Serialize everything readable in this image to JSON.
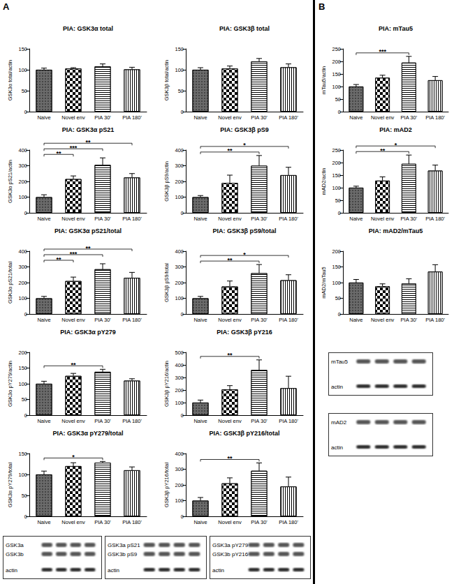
{
  "chart_data": [
    {
      "type": "bar",
      "title": "PIA: GSK3α total",
      "y_label": "GSK3α total/actin",
      "categories": [
        "Naive",
        "Novel env",
        "PIA 30'",
        "PIA 180'"
      ],
      "values": [
        100,
        103,
        108,
        101
      ],
      "errors": [
        4,
        2,
        6,
        5
      ],
      "colors": [
        "#6b6b6b",
        "#ffffff",
        "#ffffff",
        "#ffffff"
      ],
      "ylim": [
        0,
        150
      ],
      "yticks": [
        0,
        50,
        100,
        150
      ],
      "grid": false,
      "significance": []
    },
    {
      "type": "bar",
      "title": "PIA: GSK3β total",
      "y_label": "GSK3β total/actin",
      "categories": [
        "Naive",
        "Novel env",
        "PIA 30'",
        "PIA 180'"
      ],
      "values": [
        100,
        103,
        120,
        106
      ],
      "errors": [
        5,
        6,
        7,
        8
      ],
      "colors": [
        "#6b6b6b",
        "#ffffff",
        "#ffffff",
        "#ffffff"
      ],
      "ylim": [
        0,
        150
      ],
      "yticks": [
        0,
        50,
        100,
        150
      ],
      "grid": false,
      "significance": []
    },
    {
      "type": "bar",
      "title": "PIA: GSK3α pS21",
      "y_label": "GSK3α pS21/actin",
      "categories": [
        "Naive",
        "Novel env",
        "PIA 30'",
        "PIA 180'"
      ],
      "values": [
        100,
        215,
        305,
        225
      ],
      "errors": [
        15,
        20,
        45,
        25
      ],
      "colors": [
        "#6b6b6b",
        "#ffffff",
        "#ffffff",
        "#ffffff"
      ],
      "ylim": [
        0,
        400
      ],
      "yticks": [
        0,
        100,
        200,
        300,
        400
      ],
      "grid": false,
      "significance": [
        {
          "from": "Naive",
          "to": "Novel env",
          "label": "**"
        },
        {
          "from": "Naive",
          "to": "PIA 30'",
          "label": "***"
        },
        {
          "from": "Naive",
          "to": "PIA 180'",
          "label": "**"
        }
      ]
    },
    {
      "type": "bar",
      "title": "PIA: GSK3β pS9",
      "y_label": "GSK3β pS9/actin",
      "categories": [
        "Naive",
        "Novel env",
        "PIA 30'",
        "PIA 180'"
      ],
      "values": [
        100,
        190,
        300,
        240
      ],
      "errors": [
        10,
        50,
        65,
        50
      ],
      "colors": [
        "#6b6b6b",
        "#ffffff",
        "#ffffff",
        "#ffffff"
      ],
      "ylim": [
        0,
        400
      ],
      "yticks": [
        0,
        100,
        200,
        300,
        400
      ],
      "grid": false,
      "significance": [
        {
          "from": "Naive",
          "to": "PIA 30'",
          "label": "**"
        },
        {
          "from": "Naive",
          "to": "PIA 180'",
          "label": "*"
        }
      ]
    },
    {
      "type": "bar",
      "title": "PIA: GSK3α pS21/total",
      "y_label": "GSK3α pS21/total",
      "categories": [
        "Naive",
        "Novel env",
        "PIA 30'",
        "PIA 180'"
      ],
      "values": [
        100,
        210,
        285,
        230
      ],
      "errors": [
        12,
        25,
        35,
        35
      ],
      "colors": [
        "#6b6b6b",
        "#ffffff",
        "#ffffff",
        "#ffffff"
      ],
      "ylim": [
        0,
        400
      ],
      "yticks": [
        0,
        100,
        200,
        300,
        400
      ],
      "grid": false,
      "significance": [
        {
          "from": "Naive",
          "to": "Novel env",
          "label": "**"
        },
        {
          "from": "Naive",
          "to": "PIA 30'",
          "label": "***"
        },
        {
          "from": "Naive",
          "to": "PIA 180'",
          "label": "**"
        }
      ]
    },
    {
      "type": "bar",
      "title": "PIA: GSK3β pS9/total",
      "y_label": "GSK3β pS9/total",
      "categories": [
        "Naive",
        "Novel env",
        "PIA 30'",
        "PIA 180'"
      ],
      "values": [
        100,
        175,
        260,
        215
      ],
      "errors": [
        12,
        35,
        55,
        35
      ],
      "colors": [
        "#6b6b6b",
        "#ffffff",
        "#ffffff",
        "#ffffff"
      ],
      "ylim": [
        0,
        400
      ],
      "yticks": [
        0,
        100,
        200,
        300,
        400
      ],
      "grid": false,
      "significance": [
        {
          "from": "Naive",
          "to": "PIA 30'",
          "label": "**"
        },
        {
          "from": "Naive",
          "to": "PIA 180'",
          "label": "*"
        }
      ]
    },
    {
      "type": "bar",
      "title": "PIA: GSK3α pY279",
      "y_label": "GSK3α pY279/actin",
      "categories": [
        "Naive",
        "Novel env",
        "PIA 30'",
        "PIA 180'"
      ],
      "values": [
        100,
        125,
        138,
        110
      ],
      "errors": [
        8,
        8,
        8,
        6
      ],
      "colors": [
        "#6b6b6b",
        "#ffffff",
        "#ffffff",
        "#ffffff"
      ],
      "ylim": [
        0,
        200
      ],
      "yticks": [
        0,
        50,
        100,
        150,
        200
      ],
      "grid": false,
      "significance": [
        {
          "from": "Naive",
          "to": "PIA 30'",
          "label": "**"
        }
      ]
    },
    {
      "type": "bar",
      "title": "PIA: GSK3β pY216",
      "y_label": "GSK3β pY216/actin",
      "categories": [
        "Naive",
        "Novel env",
        "PIA 30'",
        "PIA 180'"
      ],
      "values": [
        100,
        205,
        360,
        215
      ],
      "errors": [
        20,
        30,
        80,
        95
      ],
      "colors": [
        "#6b6b6b",
        "#ffffff",
        "#ffffff",
        "#ffffff"
      ],
      "ylim": [
        0,
        500
      ],
      "yticks": [
        0,
        100,
        200,
        300,
        400,
        500
      ],
      "grid": false,
      "significance": [
        {
          "from": "Naive",
          "to": "PIA 30'",
          "label": "**"
        }
      ]
    },
    {
      "type": "bar",
      "title": "PIA: GSK3α pY279/total",
      "y_label": "GSK3α pY279/total",
      "categories": [
        "Naive",
        "Novel env",
        "PIA 30'",
        "PIA 180'"
      ],
      "values": [
        100,
        120,
        128,
        110
      ],
      "errors": [
        8,
        8,
        3,
        8
      ],
      "colors": [
        "#6b6b6b",
        "#ffffff",
        "#ffffff",
        "#ffffff"
      ],
      "ylim": [
        0,
        150
      ],
      "yticks": [
        0,
        50,
        100,
        150
      ],
      "grid": false,
      "significance": [
        {
          "from": "Naive",
          "to": "PIA 30'",
          "label": "*"
        }
      ]
    },
    {
      "type": "bar",
      "title": "PIA: GSK3β pY216/total",
      "y_label": "GSK3β pY216/total",
      "categories": [
        "Naive",
        "Novel env",
        "PIA 30'",
        "PIA 180'"
      ],
      "values": [
        100,
        210,
        290,
        190
      ],
      "errors": [
        20,
        35,
        50,
        60
      ],
      "colors": [
        "#6b6b6b",
        "#ffffff",
        "#ffffff",
        "#ffffff"
      ],
      "ylim": [
        0,
        400
      ],
      "yticks": [
        0,
        100,
        200,
        300,
        400
      ],
      "grid": false,
      "significance": [
        {
          "from": "Naive",
          "to": "PIA 30'",
          "label": "**"
        }
      ]
    },
    {
      "type": "bar",
      "title": "PIA: mTau5",
      "y_label": "mTau5/actin",
      "categories": [
        "Naive",
        "Novel env",
        "PIA 30'",
        "PIA 180'"
      ],
      "values": [
        100,
        135,
        195,
        125
      ],
      "errors": [
        8,
        10,
        25,
        15
      ],
      "colors": [
        "#6b6b6b",
        "#ffffff",
        "#ffffff",
        "#ffffff"
      ],
      "ylim": [
        0,
        250
      ],
      "yticks": [
        0,
        50,
        100,
        150,
        200,
        250
      ],
      "grid": false,
      "significance": [
        {
          "from": "Naive",
          "to": "PIA 30'",
          "label": "***"
        }
      ]
    },
    {
      "type": "bar",
      "title": "PIA: mAD2",
      "y_label": "mAD2/actin",
      "categories": [
        "Naive",
        "Novel env",
        "PIA 30'",
        "PIA 180'"
      ],
      "values": [
        100,
        128,
        195,
        168
      ],
      "errors": [
        6,
        15,
        35,
        22
      ],
      "colors": [
        "#6b6b6b",
        "#ffffff",
        "#ffffff",
        "#ffffff"
      ],
      "ylim": [
        0,
        250
      ],
      "yticks": [
        0,
        50,
        100,
        150,
        200,
        250
      ],
      "grid": false,
      "significance": [
        {
          "from": "Naive",
          "to": "PIA 30'",
          "label": "**"
        },
        {
          "from": "Naive",
          "to": "PIA 180'",
          "label": "*"
        }
      ]
    },
    {
      "type": "bar",
      "title": "PIA: mAD2/mTau5",
      "y_label": "mAD2/mTau5",
      "categories": [
        "Naive",
        "Novel env",
        "PIA 30'",
        "PIA 180'"
      ],
      "values": [
        100,
        88,
        97,
        135
      ],
      "errors": [
        10,
        8,
        15,
        22
      ],
      "colors": [
        "#6b6b6b",
        "#ffffff",
        "#ffffff",
        "#ffffff"
      ],
      "ylim": [
        0,
        200
      ],
      "yticks": [
        0,
        50,
        100,
        150,
        200
      ],
      "grid": false,
      "significance": []
    }
  ],
  "panels": [
    {
      "label": "A",
      "blots": [
        {
          "labels": [
            "GSK3a",
            "GSK3b",
            "actin"
          ]
        },
        {
          "labels": [
            "GSK3a pS21",
            "GSK3b pS9",
            "actin"
          ]
        },
        {
          "labels": [
            "GSK3a pY279",
            "GSK3b pY216",
            "actin"
          ]
        }
      ]
    },
    {
      "label": "B",
      "blots": [
        {
          "labels": [
            "mTau5",
            "actin"
          ]
        },
        {
          "labels": [
            "mAD2",
            "actin"
          ]
        }
      ]
    }
  ]
}
